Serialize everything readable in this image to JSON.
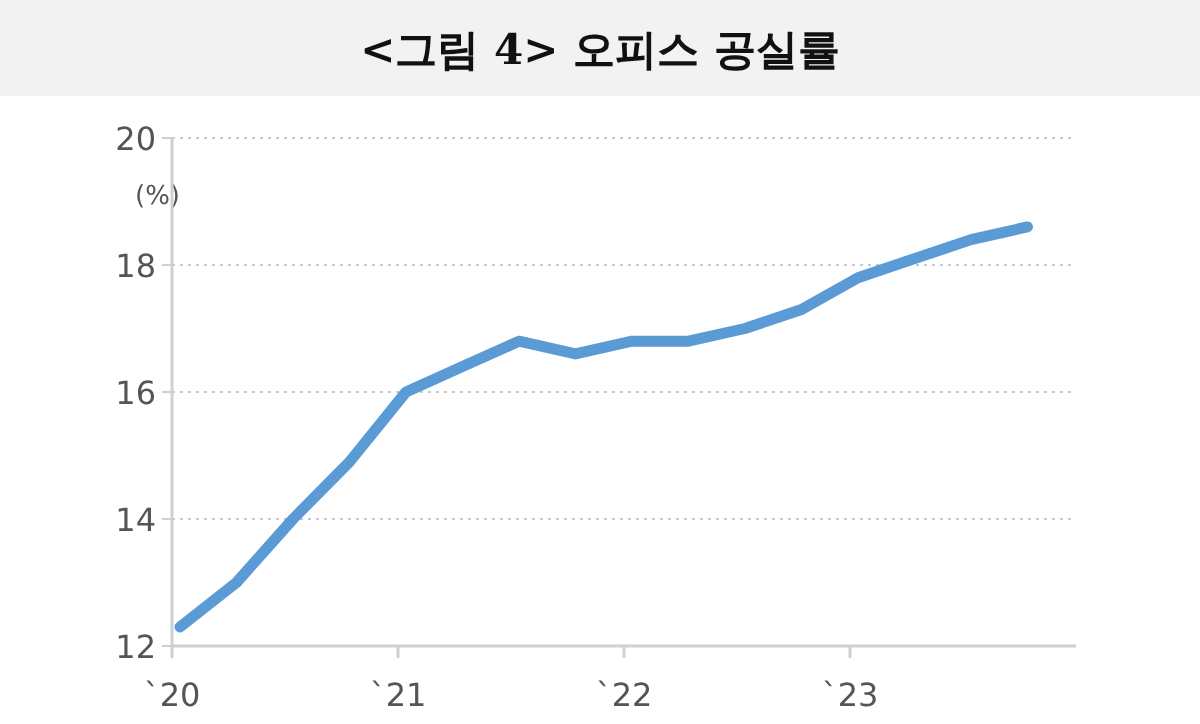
{
  "chart_data": {
    "type": "line",
    "title": "<그림 4> 오피스 공실률",
    "ylabel": "(%)",
    "categories": [
      "`20",
      null,
      null,
      null,
      "`21",
      null,
      null,
      null,
      "`22",
      null,
      null,
      null,
      "`23",
      null,
      null,
      null
    ],
    "series": [
      {
        "color": "#5b9bd5",
        "values": [
          12.3,
          13.0,
          14.0,
          14.9,
          16.0,
          16.4,
          16.8,
          16.6,
          16.8,
          16.8,
          17.0,
          17.3,
          17.8,
          18.1,
          18.4,
          18.6
        ]
      }
    ],
    "ylim": [
      12,
      20
    ],
    "yticks": [
      12,
      14,
      16,
      18,
      20
    ],
    "grid": "y",
    "marker": "none",
    "line_style": "solid"
  }
}
